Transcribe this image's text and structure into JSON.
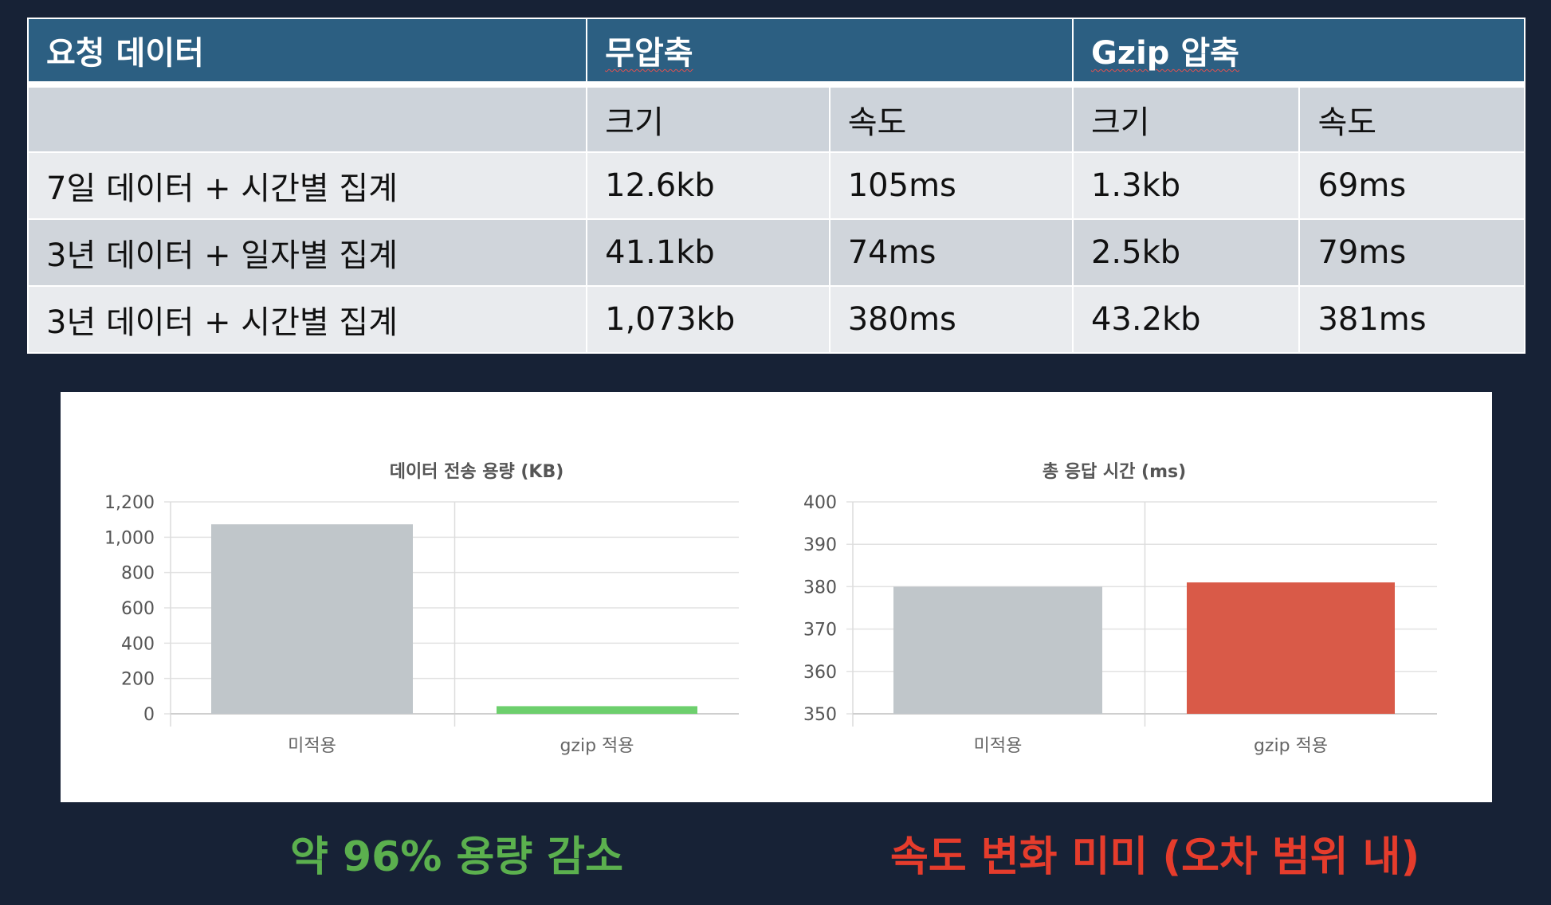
{
  "table": {
    "header": {
      "request": "요청 데이터",
      "uncompressed": "무압축",
      "gzip": "Gzip 압축"
    },
    "subheader": [
      "",
      "크기",
      "속도",
      "크기",
      "속도"
    ],
    "rows": [
      [
        "7일 데이터 + 시간별 집계",
        "12.6kb",
        "105ms",
        "1.3kb",
        "69ms"
      ],
      [
        "3년 데이터 + 일자별 집계",
        "41.1kb",
        "74ms",
        "2.5kb",
        "79ms"
      ],
      [
        "3년 데이터 + 시간별 집계",
        "1,073kb",
        "380ms",
        "43.2kb",
        "381ms"
      ]
    ]
  },
  "chart_data": [
    {
      "type": "bar",
      "title": "데이터 전송 용량 (KB)",
      "categories": [
        "미적용",
        "gzip 적용"
      ],
      "values": [
        1073,
        43.2
      ],
      "ylim": [
        0,
        1200
      ],
      "ticks": [
        "0",
        "200",
        "400",
        "600",
        "800",
        "1,000",
        "1,200"
      ],
      "tick_values": [
        0,
        200,
        400,
        600,
        800,
        1000,
        1200
      ],
      "colors": [
        "#c0c6ca",
        "#6dcf6d"
      ],
      "grid": true
    },
    {
      "type": "bar",
      "title": "총 응답 시간 (ms)",
      "categories": [
        "미적용",
        "gzip 적용"
      ],
      "values": [
        380,
        381
      ],
      "ylim": [
        350,
        400
      ],
      "ticks": [
        "350",
        "360",
        "370",
        "380",
        "390",
        "400"
      ],
      "tick_values": [
        350,
        360,
        370,
        380,
        390,
        400
      ],
      "colors": [
        "#c0c6ca",
        "#d95a48"
      ],
      "grid": true
    }
  ],
  "captions": {
    "left": "약 96% 용량 감소",
    "right": "속도 변화 미미 (오차 범위 내)"
  },
  "colors": {
    "background": "#172236",
    "header": "#2c5f82",
    "good": "#5bb04e",
    "bad": "#e53c2c"
  }
}
